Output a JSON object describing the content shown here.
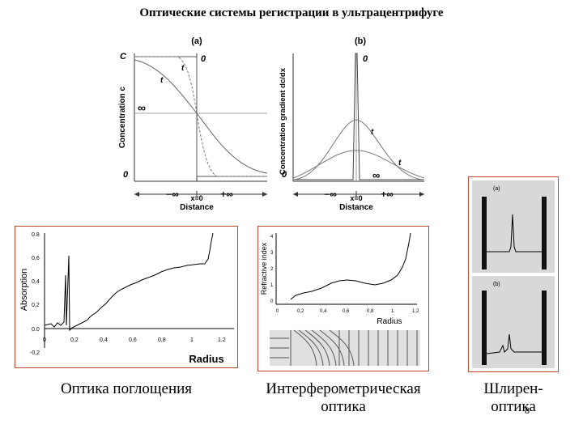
{
  "title": "Оптические системы регистрации в ультрацентрифуге",
  "panel_a": {
    "label": "(a)",
    "ylabel": "Concentration c",
    "xlabel": "Distance",
    "c0": "C",
    "zero_top": "0",
    "zero_bottom": "0",
    "infinity": "∞",
    "t1": "t",
    "t2": "t",
    "xtick_minus": "−∞",
    "xtick_zero": "x=0",
    "xtick_plus": "+∞"
  },
  "panel_b": {
    "label": "(b)",
    "ylabel": "Concentration gradient dc/dx",
    "xlabel": "Distance",
    "zero_top": "0",
    "zero_bottom": "0",
    "infinity": "∞",
    "t1": "t",
    "t2": "t",
    "xtick_minus": "−∞",
    "xtick_zero": "x=0",
    "xtick_plus": "+∞"
  },
  "absorption_plot": {
    "ylabel": "Absorption",
    "xlabel": "Radius",
    "yticks": [
      "0.8",
      "0,6",
      "0,4",
      "0,2",
      "0.0",
      "-0,2"
    ],
    "xticks": [
      "0",
      "0,2",
      "0,4",
      "0,6",
      "0,8",
      "1",
      "1.2"
    ]
  },
  "interference_plot": {
    "ylabel": "Refractive index",
    "xlabel": "Radius",
    "yticks": [
      "4",
      "3",
      "2",
      "1",
      "0"
    ],
    "xticks": [
      "0",
      "0,2",
      "0,4",
      "0,6",
      "0,8",
      "1",
      "1,2"
    ]
  },
  "schlieren_image": {
    "label_a": "(a)",
    "label_b": "(b)"
  },
  "captions": {
    "absorption": "Оптика поглощения",
    "interference_line1": "Интерферометрическая",
    "interference_line2": "оптика",
    "schlieren_line1": "Шлирен-",
    "schlieren_line2": "оптика"
  },
  "page_number": "8"
}
